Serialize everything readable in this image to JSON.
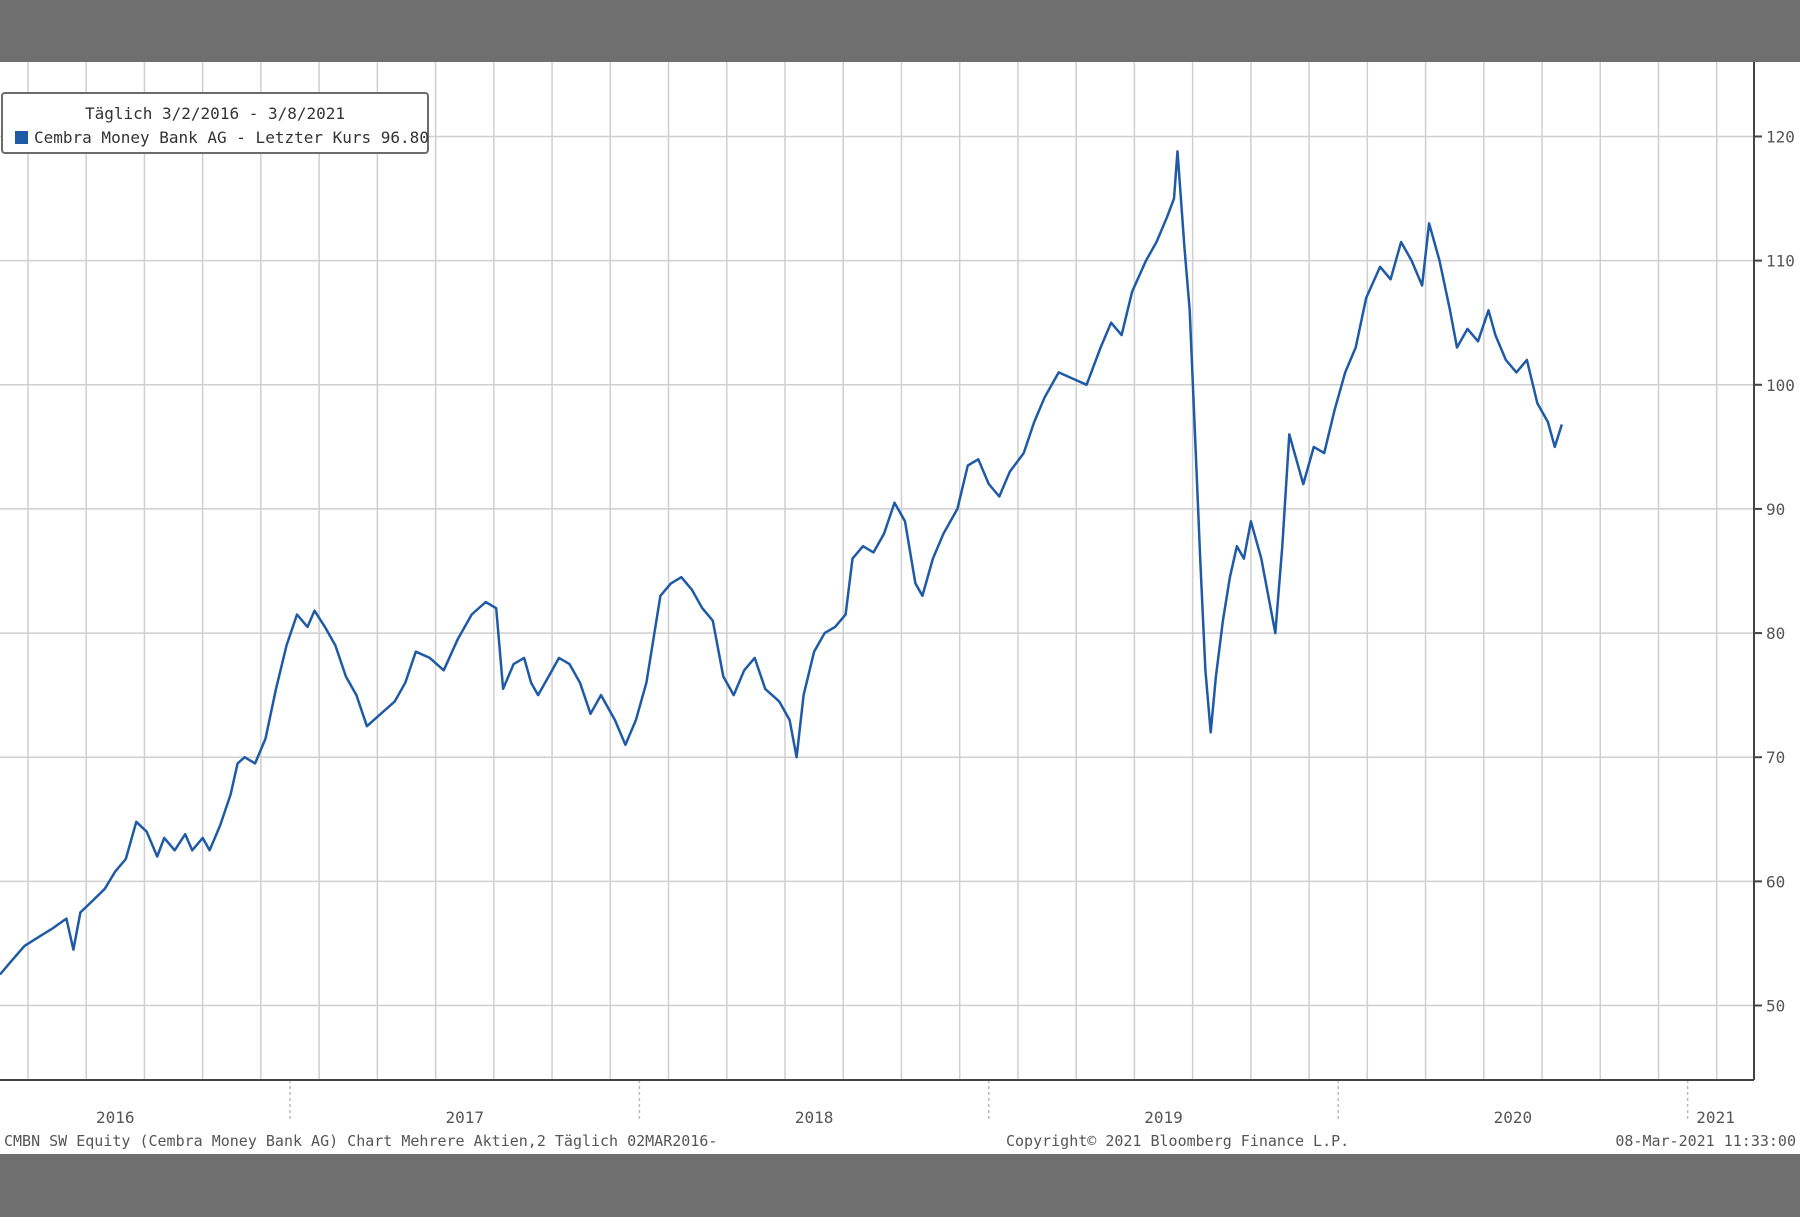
{
  "chart_data": {
    "type": "line",
    "legend": {
      "title": "Täglich 3/2/2016 - 3/8/2021",
      "entry": "Cembra Money Bank AG - Letzter Kurs 96.80",
      "placement": "top-left"
    },
    "ylim": [
      44,
      126
    ],
    "y_ticks": [
      50,
      60,
      70,
      80,
      90,
      100,
      110,
      120
    ],
    "y_axis_side": "right",
    "xlim": [
      2016.17,
      2021.19
    ],
    "x_year_labels": [
      {
        "label": "2016",
        "x": 2016.5
      },
      {
        "label": "2017",
        "x": 2017.5
      },
      {
        "label": "2018",
        "x": 2018.5
      },
      {
        "label": "2019",
        "x": 2019.5
      },
      {
        "label": "2020",
        "x": 2020.5
      },
      {
        "label": "2021",
        "x": 2021.08
      }
    ],
    "x_year_boundaries": [
      2017.0,
      2018.0,
      2019.0,
      2020.0,
      2021.0
    ],
    "grid": true,
    "series": [
      {
        "color": "#1f5aa6",
        "points": [
          [
            2016.17,
            52.5
          ],
          [
            2016.2,
            53.5
          ],
          [
            2016.24,
            54.8
          ],
          [
            2016.28,
            55.5
          ],
          [
            2016.32,
            56.2
          ],
          [
            2016.36,
            57.0
          ],
          [
            2016.38,
            54.5
          ],
          [
            2016.4,
            57.5
          ],
          [
            2016.43,
            58.3
          ],
          [
            2016.47,
            59.4
          ],
          [
            2016.5,
            60.8
          ],
          [
            2016.53,
            61.8
          ],
          [
            2016.56,
            64.8
          ],
          [
            2016.59,
            64.0
          ],
          [
            2016.62,
            62.0
          ],
          [
            2016.64,
            63.5
          ],
          [
            2016.67,
            62.5
          ],
          [
            2016.7,
            63.8
          ],
          [
            2016.72,
            62.5
          ],
          [
            2016.75,
            63.5
          ],
          [
            2016.77,
            62.5
          ],
          [
            2016.8,
            64.5
          ],
          [
            2016.83,
            67.0
          ],
          [
            2016.85,
            69.5
          ],
          [
            2016.87,
            70.0
          ],
          [
            2016.9,
            69.5
          ],
          [
            2016.93,
            71.5
          ],
          [
            2016.96,
            75.5
          ],
          [
            2016.99,
            79.0
          ],
          [
            2017.02,
            81.5
          ],
          [
            2017.05,
            80.5
          ],
          [
            2017.07,
            81.8
          ],
          [
            2017.1,
            80.5
          ],
          [
            2017.13,
            79.0
          ],
          [
            2017.16,
            76.5
          ],
          [
            2017.19,
            75.0
          ],
          [
            2017.22,
            72.5
          ],
          [
            2017.26,
            73.5
          ],
          [
            2017.3,
            74.5
          ],
          [
            2017.33,
            76.0
          ],
          [
            2017.36,
            78.5
          ],
          [
            2017.4,
            78.0
          ],
          [
            2017.44,
            77.0
          ],
          [
            2017.48,
            79.5
          ],
          [
            2017.52,
            81.5
          ],
          [
            2017.56,
            82.5
          ],
          [
            2017.59,
            82.0
          ],
          [
            2017.61,
            75.5
          ],
          [
            2017.64,
            77.5
          ],
          [
            2017.67,
            78.0
          ],
          [
            2017.69,
            76.0
          ],
          [
            2017.71,
            75.0
          ],
          [
            2017.74,
            76.5
          ],
          [
            2017.77,
            78.0
          ],
          [
            2017.8,
            77.5
          ],
          [
            2017.83,
            76.0
          ],
          [
            2017.86,
            73.5
          ],
          [
            2017.89,
            75.0
          ],
          [
            2017.93,
            73.0
          ],
          [
            2017.96,
            71.0
          ],
          [
            2017.99,
            73.0
          ],
          [
            2018.02,
            76.0
          ],
          [
            2018.06,
            83.0
          ],
          [
            2018.09,
            84.0
          ],
          [
            2018.12,
            84.5
          ],
          [
            2018.15,
            83.5
          ],
          [
            2018.18,
            82.0
          ],
          [
            2018.21,
            81.0
          ],
          [
            2018.24,
            76.5
          ],
          [
            2018.27,
            75.0
          ],
          [
            2018.3,
            77.0
          ],
          [
            2018.33,
            78.0
          ],
          [
            2018.36,
            75.5
          ],
          [
            2018.4,
            74.5
          ],
          [
            2018.43,
            73.0
          ],
          [
            2018.45,
            70.0
          ],
          [
            2018.47,
            75.0
          ],
          [
            2018.5,
            78.5
          ],
          [
            2018.53,
            80.0
          ],
          [
            2018.56,
            80.5
          ],
          [
            2018.59,
            81.5
          ],
          [
            2018.61,
            86.0
          ],
          [
            2018.64,
            87.0
          ],
          [
            2018.67,
            86.5
          ],
          [
            2018.7,
            88.0
          ],
          [
            2018.73,
            90.5
          ],
          [
            2018.76,
            89.0
          ],
          [
            2018.79,
            84.0
          ],
          [
            2018.81,
            83.0
          ],
          [
            2018.84,
            86.0
          ],
          [
            2018.87,
            88.0
          ],
          [
            2018.91,
            90.0
          ],
          [
            2018.94,
            93.5
          ],
          [
            2018.97,
            94.0
          ],
          [
            2019.0,
            92.0
          ],
          [
            2019.03,
            91.0
          ],
          [
            2019.06,
            93.0
          ],
          [
            2019.1,
            94.5
          ],
          [
            2019.13,
            97.0
          ],
          [
            2019.16,
            99.0
          ],
          [
            2019.2,
            101.0
          ],
          [
            2019.24,
            100.5
          ],
          [
            2019.28,
            100.0
          ],
          [
            2019.32,
            103.0
          ],
          [
            2019.35,
            105.0
          ],
          [
            2019.38,
            104.0
          ],
          [
            2019.41,
            107.5
          ],
          [
            2019.45,
            110.0
          ],
          [
            2019.48,
            111.5
          ],
          [
            2019.51,
            113.5
          ],
          [
            2019.53,
            115.0
          ],
          [
            2019.54,
            118.8
          ],
          [
            2019.56,
            111.0
          ],
          [
            2019.575,
            106.0
          ],
          [
            2019.59,
            96.0
          ],
          [
            2019.605,
            86.0
          ],
          [
            2019.62,
            77.0
          ],
          [
            2019.635,
            72.0
          ],
          [
            2019.65,
            76.5
          ],
          [
            2019.67,
            81.0
          ],
          [
            2019.69,
            84.5
          ],
          [
            2019.71,
            87.0
          ],
          [
            2019.73,
            86.0
          ],
          [
            2019.75,
            89.0
          ],
          [
            2019.78,
            86.0
          ],
          [
            2019.8,
            83.0
          ],
          [
            2019.82,
            80.0
          ],
          [
            2019.84,
            87.0
          ],
          [
            2019.86,
            96.0
          ],
          [
            2019.88,
            94.0
          ],
          [
            2019.9,
            92.0
          ],
          [
            2019.93,
            95.0
          ],
          [
            2019.96,
            94.5
          ],
          [
            2019.99,
            98.0
          ],
          [
            2020.02,
            101.0
          ],
          [
            2020.05,
            103.0
          ],
          [
            2020.08,
            107.0
          ],
          [
            2020.12,
            109.5
          ],
          [
            2020.15,
            108.5
          ],
          [
            2020.18,
            111.5
          ],
          [
            2020.21,
            110.0
          ],
          [
            2020.24,
            108.0
          ],
          [
            2020.26,
            113.0
          ],
          [
            2020.29,
            110.0
          ],
          [
            2020.32,
            106.0
          ],
          [
            2020.34,
            103.0
          ],
          [
            2020.37,
            104.5
          ],
          [
            2020.4,
            103.5
          ],
          [
            2020.43,
            106.0
          ],
          [
            2020.45,
            104.0
          ],
          [
            2020.48,
            102.0
          ],
          [
            2020.51,
            101.0
          ],
          [
            2020.54,
            102.0
          ],
          [
            2020.57,
            98.5
          ],
          [
            2020.6,
            97.0
          ],
          [
            2020.62,
            95.0
          ],
          [
            2020.64,
            96.8
          ]
        ]
      }
    ]
  },
  "footer": {
    "left": "CMBN SW Equity (Cembra Money Bank AG) Chart Mehrere Aktien,2  Täglich 02MAR2016-",
    "center": "Copyright© 2021 Bloomberg Finance L.P.",
    "right": "08-Mar-2021 11:33:00"
  }
}
